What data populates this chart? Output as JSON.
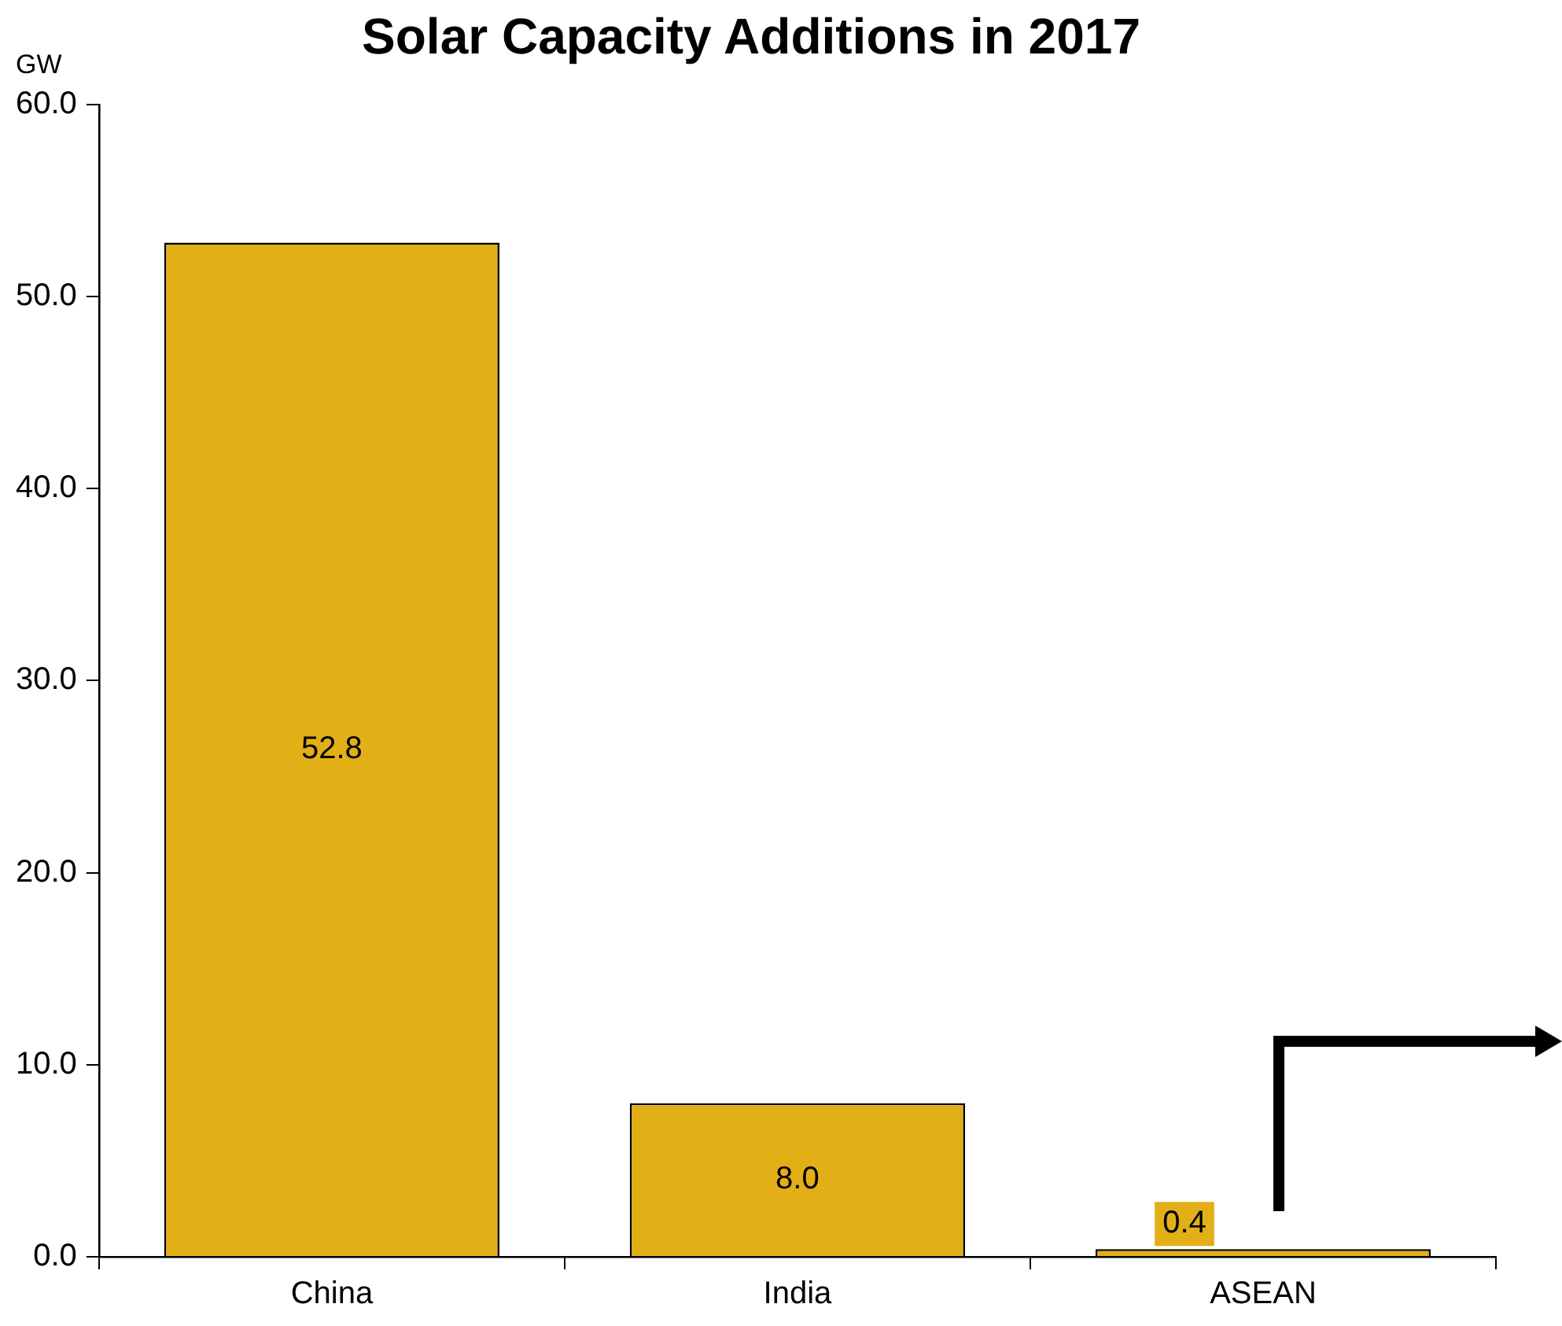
{
  "chart_data": {
    "type": "bar",
    "title": "Solar Capacity Additions in 2017",
    "ylabel": "GW",
    "categories": [
      "China",
      "India",
      "ASEAN"
    ],
    "values": [
      52.8,
      8.0,
      0.4
    ],
    "value_labels": [
      "52.8",
      "8.0",
      "0.4"
    ],
    "color": "#e3af17",
    "ylim": [
      0,
      60
    ],
    "yticks": [
      {
        "value": 0,
        "label": "0.0"
      },
      {
        "value": 10,
        "label": "10.0"
      },
      {
        "value": 20,
        "label": "20.0"
      },
      {
        "value": 30,
        "label": "30.0"
      },
      {
        "value": 40,
        "label": "40.0"
      },
      {
        "value": 50,
        "label": "50.0"
      },
      {
        "value": 60,
        "label": "60.0"
      }
    ],
    "grid": false,
    "legend": false
  }
}
